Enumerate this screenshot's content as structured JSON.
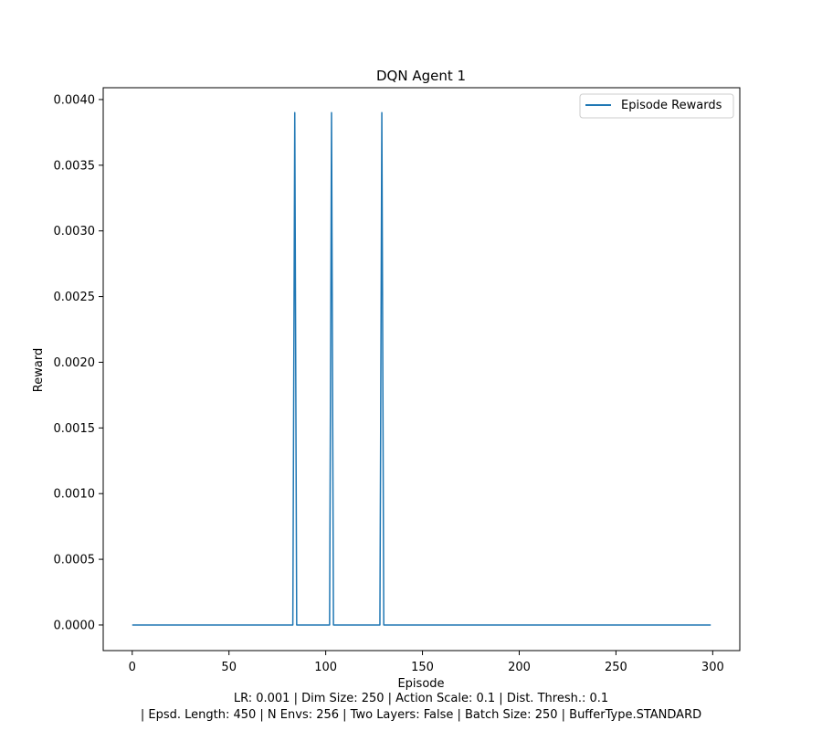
{
  "chart_data": {
    "type": "line",
    "title": "DQN Agent 1",
    "xlabel": "Episode",
    "ylabel": "Reward",
    "xlim": [
      -15,
      314
    ],
    "ylim": [
      -0.000195,
      0.00409
    ],
    "x_ticks": [
      0,
      50,
      100,
      150,
      200,
      250,
      300
    ],
    "x_tick_labels": [
      "0",
      "50",
      "100",
      "150",
      "200",
      "250",
      "300"
    ],
    "y_ticks": [
      0,
      0.0005,
      0.001,
      0.0015,
      0.002,
      0.0025,
      0.003,
      0.0035,
      0.004
    ],
    "y_tick_labels": [
      "0.0000",
      "0.0005",
      "0.0010",
      "0.0015",
      "0.0020",
      "0.0025",
      "0.0030",
      "0.0035",
      "0.0040"
    ],
    "grid": false,
    "legend_position": "top-right",
    "series": [
      {
        "name": "Episode Rewards",
        "color": "#1f77b4",
        "x": [
          0,
          83,
          84,
          85,
          102,
          103,
          104,
          128,
          129,
          130,
          299
        ],
        "y": [
          0,
          0,
          0.0039,
          0,
          0,
          0.0039,
          0,
          0,
          0.0039,
          0,
          0
        ]
      }
    ],
    "caption_lines": [
      "LR: 0.001 | Dim Size: 250 | Action Scale: 0.1 | Dist. Thresh.: 0.1",
      "| Epsd. Length: 450 | N Envs: 256 | Two Layers: False | Batch Size: 250 | BufferType.STANDARD"
    ]
  }
}
